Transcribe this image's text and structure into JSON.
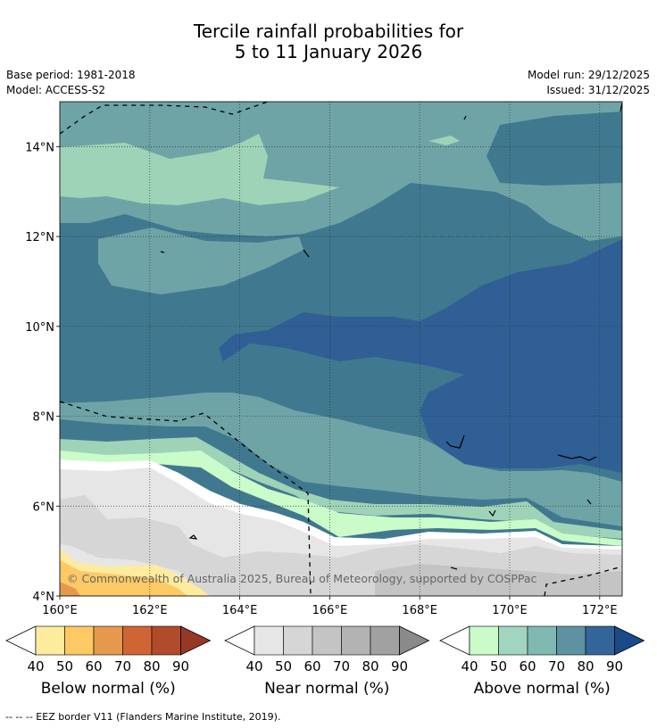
{
  "title_line1": "Tercile rainfall probabilities for",
  "title_line2": "5 to 11 January 2026",
  "base_period": "Base period: 1981-2018",
  "model": "Model: ACCESS-S2",
  "model_run": "Model run: 29/12/2025",
  "issued": "Issued: 31/12/2025",
  "copyright": "© Commonwealth of Australia 2025, Bureau of Meteorology, supported by COSPPac",
  "footer_note": "--  --  -- EEZ border V11 (Flanders Marine Institute, 2019).",
  "map": {
    "lon_range": [
      160,
      172.5
    ],
    "lat_range": [
      4,
      15
    ],
    "lon_ticks": [
      {
        "v": 160,
        "t": "160°E"
      },
      {
        "v": 162,
        "t": "162°E"
      },
      {
        "v": 164,
        "t": "164°E"
      },
      {
        "v": 166,
        "t": "166°E"
      },
      {
        "v": 168,
        "t": "168°E"
      },
      {
        "v": 170,
        "t": "170°E"
      },
      {
        "v": 172,
        "t": "172°E"
      }
    ],
    "lat_ticks": [
      {
        "v": 4,
        "t": "4°N"
      },
      {
        "v": 6,
        "t": "6°N"
      },
      {
        "v": 8,
        "t": "8°N"
      },
      {
        "v": 10,
        "t": "10°N"
      },
      {
        "v": 12,
        "t": "12°N"
      },
      {
        "v": 14,
        "t": "14°N"
      }
    ]
  },
  "colorbars": [
    {
      "label": "Below normal (%)",
      "ticks": [
        "40",
        "50",
        "60",
        "70",
        "80",
        "90"
      ],
      "colors": [
        "#fdeb9e",
        "#fdc965",
        "#e4994c",
        "#cf6535",
        "#b24b2c",
        "#973825"
      ]
    },
    {
      "label": "Near normal (%)",
      "ticks": [
        "40",
        "50",
        "60",
        "70",
        "80",
        "90"
      ],
      "colors": [
        "#e6e6e6",
        "#d6d6d6",
        "#c4c4c4",
        "#b3b3b3",
        "#a1a1a1",
        "#8a8a8a"
      ]
    },
    {
      "label": "Above normal (%)",
      "ticks": [
        "40",
        "50",
        "60",
        "70",
        "80",
        "90"
      ],
      "colors": [
        "#c9fcc8",
        "#a1d5bd",
        "#7fb9b1",
        "#5e92a3",
        "#336599",
        "#1a4a8a"
      ]
    }
  ],
  "palette": {
    "above_50": "#9fd3b8",
    "above_60": "#6fa4a6",
    "above_70": "#40798f",
    "above_80": "#2f5f94",
    "above_40": "#c9fcc8",
    "near_40": "#e6e6e6",
    "near_50": "#d6d6d6",
    "below_40": "#fdeb9e",
    "below_50": "#fdc965",
    "below_60": "#e4994c"
  }
}
